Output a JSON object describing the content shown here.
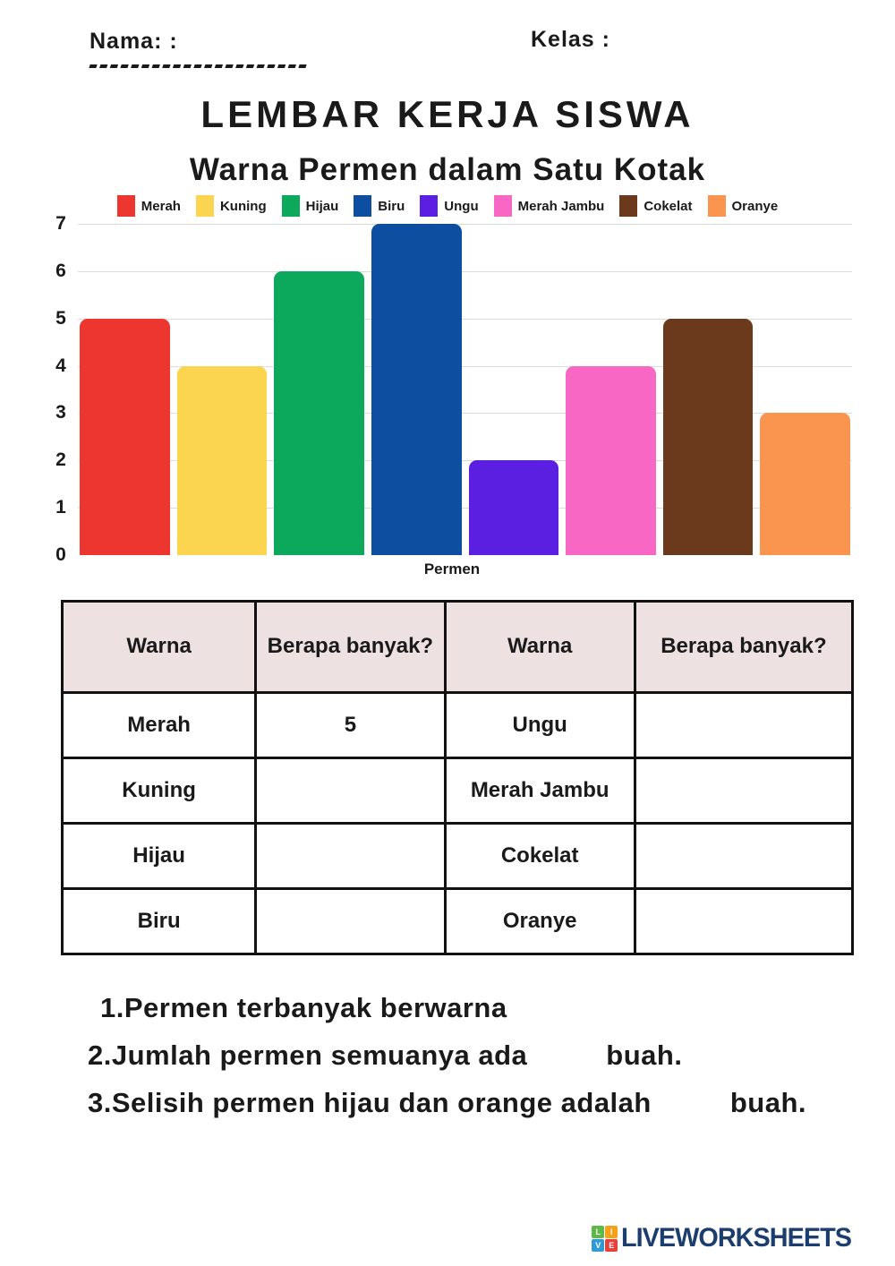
{
  "page": {
    "nama_label": "Nama: :",
    "kelas_label": "Kelas :",
    "title": "LEMBAR KERJA SISWA"
  },
  "chart_data": {
    "type": "bar",
    "title": "Warna Permen dalam Satu Kotak",
    "xlabel": "Permen",
    "ylabel": "",
    "ylim": [
      0,
      7
    ],
    "yticks": [
      0,
      1,
      2,
      3,
      4,
      5,
      6,
      7
    ],
    "grid": true,
    "legend_position": "top",
    "categories": [
      "Merah",
      "Kuning",
      "Hijau",
      "Biru",
      "Ungu",
      "Merah Jambu",
      "Cokelat",
      "Oranye"
    ],
    "values": [
      5,
      4,
      6,
      7,
      2,
      4,
      5,
      3
    ],
    "colors": [
      "#EE3630",
      "#FBD54F",
      "#0CA85C",
      "#0D4EA0",
      "#5B1FE2",
      "#F767C3",
      "#6B3A1D",
      "#F9954F"
    ]
  },
  "table": {
    "headers": [
      "Warna",
      "Berapa banyak?",
      "Warna",
      "Berapa banyak?"
    ],
    "header_bg": "#EDE2E1",
    "rows": [
      [
        "Merah",
        "5",
        "Ungu",
        ""
      ],
      [
        "Kuning",
        "",
        "Merah Jambu",
        ""
      ],
      [
        "Hijau",
        "",
        "Cokelat",
        ""
      ],
      [
        "Biru",
        "",
        "Oranye",
        ""
      ]
    ]
  },
  "questions": [
    {
      "text": "1.Permen terbanyak berwarna",
      "suffix": ""
    },
    {
      "text": "2.Jumlah permen semuanya ada",
      "suffix": "buah."
    },
    {
      "text": "3.Selisih permen hijau dan orange adalah",
      "suffix": "buah."
    }
  ],
  "footer": {
    "logo_text": "LIVEWORKSHEETS",
    "logo_text_color": "#1B3E6F",
    "logo_tiles": [
      {
        "letter": "L",
        "color": "#5CB947"
      },
      {
        "letter": "I",
        "color": "#F6A11A"
      },
      {
        "letter": "V",
        "color": "#2E9BD6"
      },
      {
        "letter": "E",
        "color": "#E8403A"
      }
    ]
  }
}
